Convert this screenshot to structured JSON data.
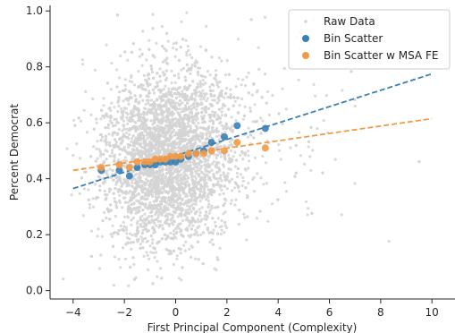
{
  "chart_data": {
    "type": "scatter",
    "xlabel": "First Principal Component (Complexity)",
    "ylabel": "Percent Democrat",
    "xlim": [
      -4.9,
      10.9
    ],
    "ylim": [
      -0.03,
      1.02
    ],
    "xticks": [
      -4,
      -2,
      0,
      2,
      4,
      6,
      8,
      10
    ],
    "yticks": [
      0.0,
      0.2,
      0.4,
      0.6,
      0.8,
      1.0
    ],
    "xtick_labels": [
      "−4",
      "−2",
      "0",
      "2",
      "4",
      "6",
      "8",
      "10"
    ],
    "ytick_labels": [
      "0.0",
      "0.2",
      "0.4",
      "0.6",
      "0.8",
      "1.0"
    ],
    "grid": false,
    "legend_position": "top-right",
    "series": [
      {
        "name": "Raw Data",
        "kind": "cloud",
        "color": "#d3d3d3",
        "count": 4200,
        "x_center": -0.3,
        "x_spread": 1.3,
        "y_center": 0.48,
        "y_spread": 0.16
      },
      {
        "name": "Bin Scatter",
        "kind": "points",
        "color": "#3a7fb5",
        "points": [
          [
            -2.9,
            0.43
          ],
          [
            -2.2,
            0.43
          ],
          [
            -1.8,
            0.41
          ],
          [
            -1.5,
            0.44
          ],
          [
            -1.2,
            0.45
          ],
          [
            -1.0,
            0.45
          ],
          [
            -0.8,
            0.45
          ],
          [
            -0.6,
            0.46
          ],
          [
            -0.4,
            0.46
          ],
          [
            -0.2,
            0.46
          ],
          [
            0.0,
            0.46
          ],
          [
            0.2,
            0.47
          ],
          [
            0.5,
            0.48
          ],
          [
            0.8,
            0.49
          ],
          [
            1.1,
            0.5
          ],
          [
            1.4,
            0.53
          ],
          [
            1.9,
            0.55
          ],
          [
            2.4,
            0.59
          ],
          [
            3.5,
            0.58
          ]
        ],
        "fit": {
          "x": [
            -4.0,
            10.0
          ],
          "y": [
            0.365,
            0.775
          ]
        }
      },
      {
        "name": "Bin Scatter w MSA FE",
        "kind": "points",
        "color": "#f39a46",
        "points": [
          [
            -2.9,
            0.44
          ],
          [
            -2.2,
            0.45
          ],
          [
            -1.8,
            0.44
          ],
          [
            -1.5,
            0.46
          ],
          [
            -1.2,
            0.46
          ],
          [
            -1.0,
            0.46
          ],
          [
            -0.8,
            0.47
          ],
          [
            -0.6,
            0.47
          ],
          [
            -0.4,
            0.47
          ],
          [
            -0.2,
            0.48
          ],
          [
            0.0,
            0.48
          ],
          [
            0.2,
            0.48
          ],
          [
            0.5,
            0.49
          ],
          [
            0.8,
            0.49
          ],
          [
            1.1,
            0.49
          ],
          [
            1.4,
            0.5
          ],
          [
            1.9,
            0.5
          ],
          [
            2.4,
            0.53
          ],
          [
            3.5,
            0.51
          ]
        ],
        "fit": {
          "x": [
            -4.0,
            10.0
          ],
          "y": [
            0.43,
            0.615
          ]
        }
      }
    ]
  }
}
